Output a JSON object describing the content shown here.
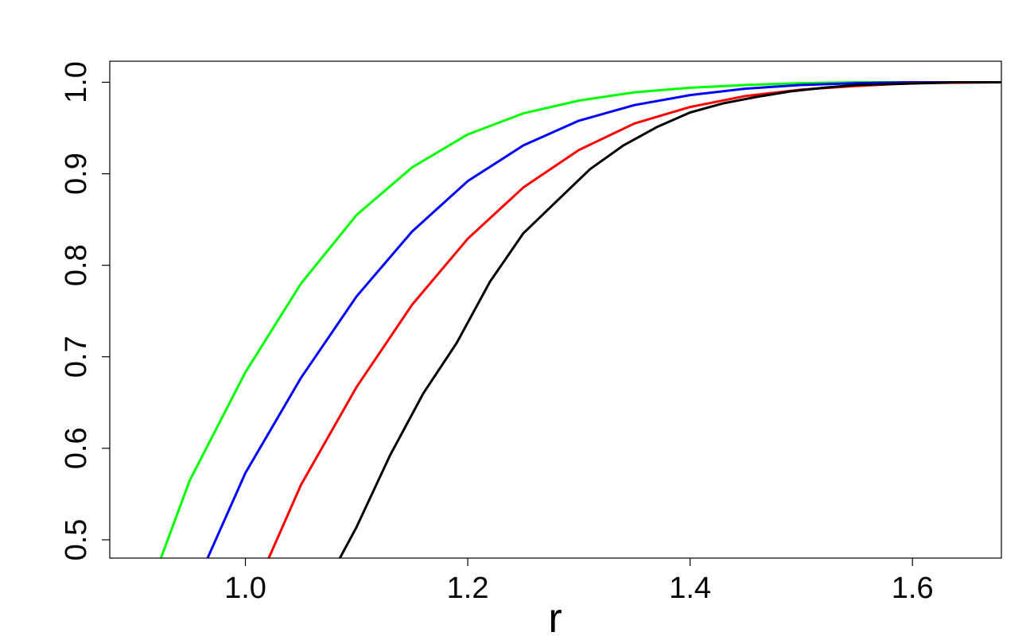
{
  "chart_data": {
    "type": "line",
    "title": "",
    "xlabel": "r",
    "ylabel": "",
    "xlim": [
      0.878,
      1.68
    ],
    "ylim": [
      0.48,
      1.023
    ],
    "xticks": [
      {
        "value": 1.0,
        "label": "1.0"
      },
      {
        "value": 1.2,
        "label": "1.2"
      },
      {
        "value": 1.4,
        "label": "1.4"
      },
      {
        "value": 1.6,
        "label": "1.6"
      }
    ],
    "yticks": [
      {
        "value": 0.5,
        "label": "0.5"
      },
      {
        "value": 0.6,
        "label": "0.6"
      },
      {
        "value": 0.7,
        "label": "0.7"
      },
      {
        "value": 0.8,
        "label": "0.8"
      },
      {
        "value": 0.9,
        "label": "0.9"
      },
      {
        "value": 1.0,
        "label": "1.0"
      }
    ],
    "grid": false,
    "legend": "none",
    "series": [
      {
        "color": "#00ff00",
        "x": [
          0.924,
          0.95,
          1.0,
          1.05,
          1.1,
          1.15,
          1.2,
          1.25,
          1.3,
          1.35,
          1.4,
          1.45,
          1.5,
          1.55,
          1.6,
          1.68
        ],
        "y": [
          0.48,
          0.565,
          0.683,
          0.78,
          0.855,
          0.907,
          0.943,
          0.966,
          0.98,
          0.989,
          0.994,
          0.997,
          0.999,
          1.0,
          1.0,
          1.0
        ]
      },
      {
        "color": "#0000ff",
        "x": [
          0.966,
          1.0,
          1.05,
          1.1,
          1.15,
          1.2,
          1.25,
          1.3,
          1.35,
          1.4,
          1.45,
          1.5,
          1.55,
          1.6,
          1.68
        ],
        "y": [
          0.48,
          0.573,
          0.677,
          0.766,
          0.837,
          0.892,
          0.931,
          0.958,
          0.975,
          0.986,
          0.993,
          0.997,
          0.999,
          1.0,
          1.0
        ]
      },
      {
        "color": "#ff0000",
        "x": [
          1.021,
          1.05,
          1.1,
          1.15,
          1.2,
          1.25,
          1.3,
          1.35,
          1.4,
          1.45,
          1.5,
          1.55,
          1.6,
          1.68
        ],
        "y": [
          0.48,
          0.56,
          0.667,
          0.757,
          0.829,
          0.885,
          0.926,
          0.955,
          0.973,
          0.985,
          0.992,
          0.996,
          0.999,
          1.0
        ]
      },
      {
        "color": "#000000",
        "x": [
          1.085,
          1.1,
          1.13,
          1.16,
          1.19,
          1.22,
          1.25,
          1.28,
          1.31,
          1.34,
          1.37,
          1.4,
          1.43,
          1.46,
          1.49,
          1.52,
          1.55,
          1.58,
          1.61,
          1.64,
          1.68
        ],
        "y": [
          0.48,
          0.514,
          0.592,
          0.66,
          0.715,
          0.782,
          0.835,
          0.87,
          0.905,
          0.931,
          0.951,
          0.967,
          0.977,
          0.984,
          0.99,
          0.994,
          0.997,
          0.998,
          0.999,
          1.0,
          1.0
        ]
      }
    ]
  }
}
